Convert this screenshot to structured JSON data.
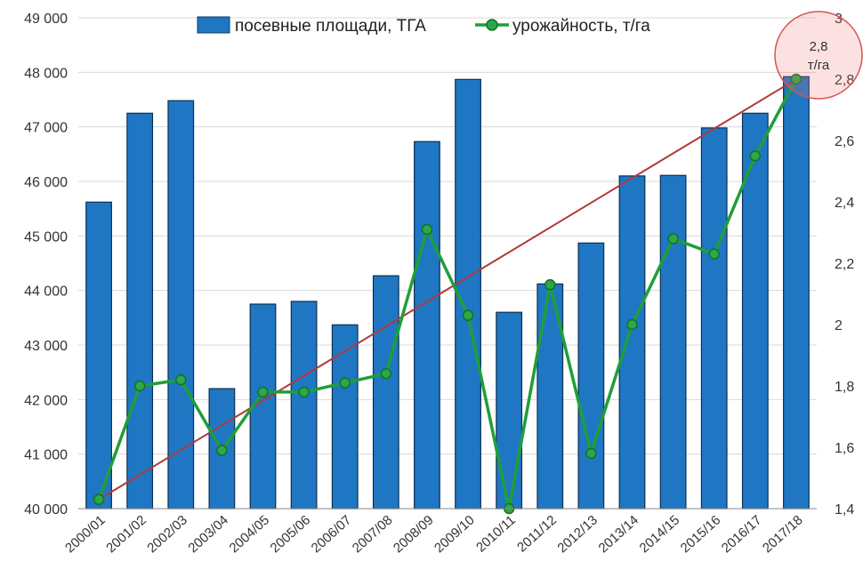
{
  "chart_data": {
    "type": "bar+line",
    "categories": [
      "2000/01",
      "2001/02",
      "2002/03",
      "2003/04",
      "2004/05",
      "2005/06",
      "2006/07",
      "2007/08",
      "2008/09",
      "2009/10",
      "2010/11",
      "2011/12",
      "2012/13",
      "2013/14",
      "2014/15",
      "2015/16",
      "2016/17",
      "2017/18"
    ],
    "series": [
      {
        "name": "посевные площади, ТГА",
        "kind": "bar",
        "axis": "left",
        "color": "#1f77c4",
        "values": [
          45620,
          47250,
          47480,
          42200,
          43750,
          43800,
          43370,
          44270,
          46730,
          47870,
          43600,
          44120,
          44870,
          46100,
          46110,
          46980,
          47250,
          47920
        ]
      },
      {
        "name": "урожайность, т/га",
        "kind": "line",
        "axis": "right",
        "color": "#1f9e3a",
        "values": [
          1.43,
          1.8,
          1.82,
          1.59,
          1.78,
          1.78,
          1.81,
          1.84,
          2.31,
          2.03,
          1.4,
          2.13,
          1.58,
          2.0,
          2.28,
          2.23,
          2.55,
          2.8
        ]
      }
    ],
    "trend": {
      "from_value": 1.43,
      "to_value": 2.8,
      "axis": "right",
      "color": "#b03a3a"
    },
    "annotation": {
      "text_value": "2,8",
      "text_unit": "т/га",
      "color": "#d9534f"
    },
    "left_axis": {
      "ylim": [
        40000,
        49000
      ],
      "ticks": [
        "40 000",
        "41 000",
        "42 000",
        "43 000",
        "44 000",
        "45 000",
        "46 000",
        "47 000",
        "48 000",
        "49 000"
      ]
    },
    "right_axis": {
      "ylim": [
        1.4,
        3.0
      ],
      "ticks": [
        "1,4",
        "1,6",
        "1,8",
        "2",
        "2,2",
        "2,4",
        "2,6",
        "2,8",
        "3"
      ]
    },
    "grid": true,
    "legend_position": "top-center"
  }
}
